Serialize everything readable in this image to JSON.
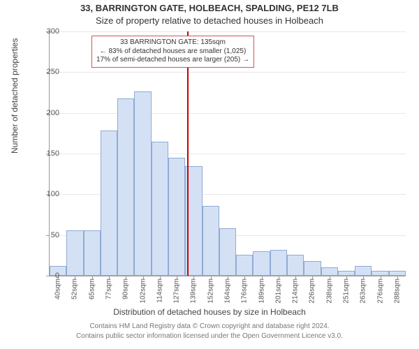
{
  "title_top": "33, BARRINGTON GATE, HOLBEACH, SPALDING, PE12 7LB",
  "title_sub": "Size of property relative to detached houses in Holbeach",
  "y_axis_label": "Number of detached properties",
  "x_axis_label": "Distribution of detached houses by size in Holbeach",
  "footer_line1": "Contains HM Land Registry data © Crown copyright and database right 2024.",
  "footer_line2": "Contains public sector information licensed under the Open Government Licence v3.0.",
  "chart": {
    "type": "histogram",
    "ylim_max": 300,
    "yticks": [
      0,
      50,
      100,
      150,
      200,
      250,
      300
    ],
    "plot_bg": "#ffffff",
    "grid_color": "#e8e8e8",
    "bar_fill": "#d4e1f5",
    "bar_border": "#8faad3",
    "axis_color": "#999999",
    "x_labels": [
      "40sqm",
      "52sqm",
      "65sqm",
      "77sqm",
      "90sqm",
      "102sqm",
      "114sqm",
      "127sqm",
      "139sqm",
      "152sqm",
      "164sqm",
      "176sqm",
      "189sqm",
      "201sqm",
      "214sqm",
      "226sqm",
      "238sqm",
      "251sqm",
      "263sqm",
      "276sqm",
      "288sqm"
    ],
    "values": [
      12,
      56,
      56,
      178,
      218,
      226,
      165,
      145,
      135,
      86,
      58,
      26,
      30,
      32,
      26,
      18,
      10,
      6,
      12,
      6,
      6
    ],
    "reference_line": {
      "x_index": 7.6,
      "color": "#cc0000"
    },
    "annotation": {
      "lines": [
        "33 BARRINGTON GATE: 135sqm",
        "← 83% of detached houses are smaller (1,025)",
        "17% of semi-detached houses are larger (205) →"
      ],
      "border_color": "#cc5555",
      "bg": "#ffffff",
      "font_size": 10
    }
  }
}
